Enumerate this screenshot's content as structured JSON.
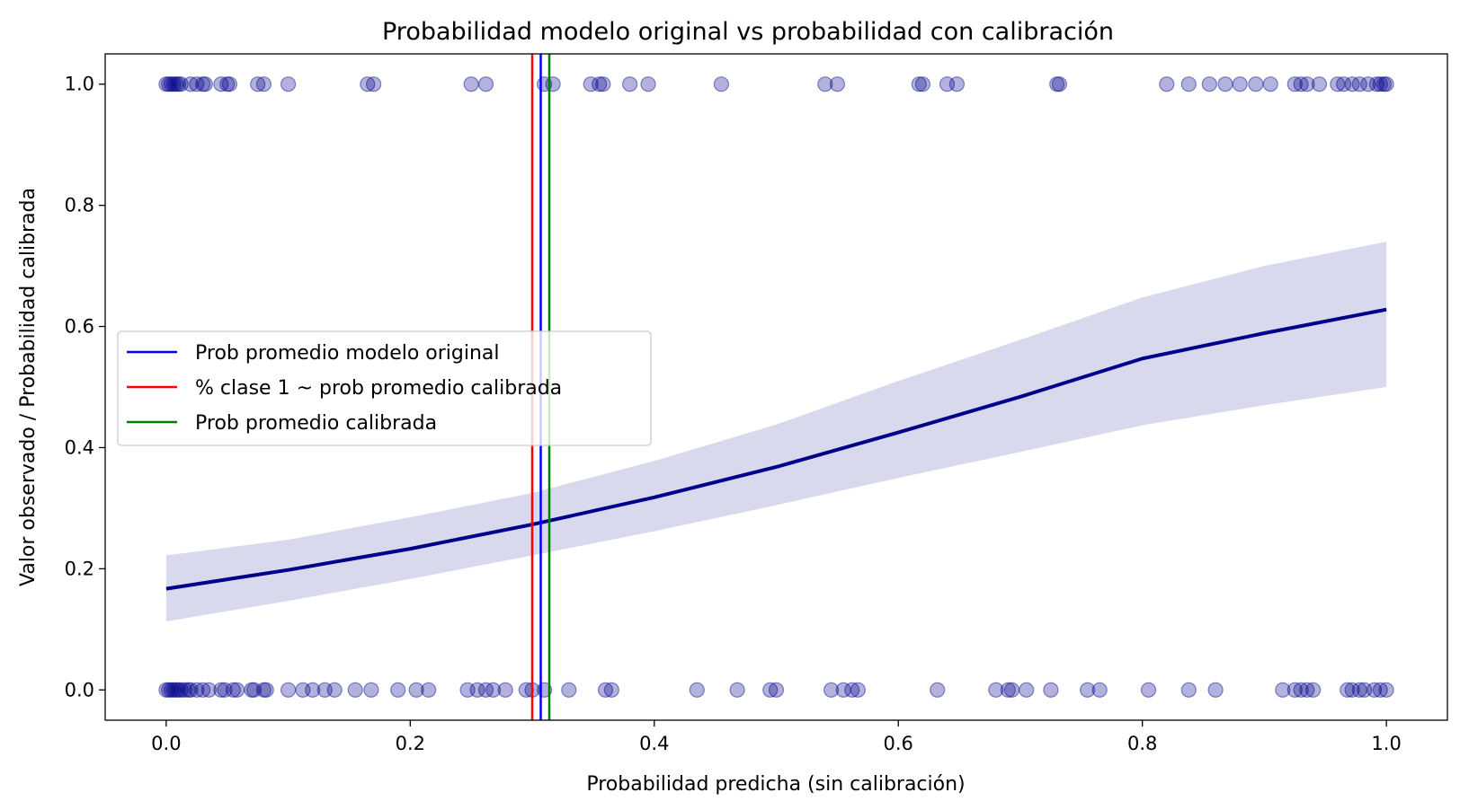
{
  "chart_data": {
    "type": "scatter",
    "title": "Probabilidad modelo original vs probabilidad con calibración",
    "xlabel": "Probabilidad predicha (sin calibración)",
    "ylabel": "Valor observado / Probabilidad calibrada",
    "xlim": [
      -0.05,
      1.05
    ],
    "ylim": [
      -0.05,
      1.05
    ],
    "xticks": [
      0.0,
      0.2,
      0.4,
      0.6,
      0.8,
      1.0
    ],
    "xtick_labels": [
      "0.0",
      "0.2",
      "0.4",
      "0.6",
      "0.8",
      "1.0"
    ],
    "yticks": [
      0.0,
      0.2,
      0.4,
      0.6,
      0.8,
      1.0
    ],
    "ytick_labels": [
      "0.0",
      "0.2",
      "0.4",
      "0.6",
      "0.8",
      "1.0"
    ],
    "grid": false,
    "legend_position": "center-left",
    "colors": {
      "points": "#00008b",
      "curve": "#00008b",
      "band": "#d8d9ec",
      "mean_original": "#0000ff",
      "class1": "#ff0000",
      "mean_calibrated": "#008000"
    },
    "points_y1": [
      0.0,
      0.002,
      0.004,
      0.006,
      0.008,
      0.01,
      0.012,
      0.02,
      0.025,
      0.03,
      0.032,
      0.045,
      0.05,
      0.052,
      0.075,
      0.08,
      0.1,
      0.165,
      0.17,
      0.25,
      0.262,
      0.31,
      0.317,
      0.348,
      0.355,
      0.358,
      0.38,
      0.395,
      0.455,
      0.54,
      0.55,
      0.617,
      0.62,
      0.64,
      0.648,
      0.73,
      0.732,
      0.82,
      0.838,
      0.855,
      0.868,
      0.88,
      0.893,
      0.905,
      0.925,
      0.93,
      0.935,
      0.945,
      0.96,
      0.965,
      0.972,
      0.978,
      0.985,
      0.992,
      0.995,
      0.998,
      1.0
    ],
    "points_y0": [
      0.0,
      0.002,
      0.004,
      0.006,
      0.008,
      0.01,
      0.012,
      0.015,
      0.018,
      0.02,
      0.025,
      0.03,
      0.035,
      0.045,
      0.048,
      0.055,
      0.058,
      0.07,
      0.072,
      0.08,
      0.082,
      0.1,
      0.112,
      0.12,
      0.13,
      0.138,
      0.155,
      0.168,
      0.19,
      0.205,
      0.215,
      0.247,
      0.255,
      0.262,
      0.268,
      0.278,
      0.295,
      0.3,
      0.31,
      0.33,
      0.36,
      0.365,
      0.435,
      0.468,
      0.495,
      0.5,
      0.545,
      0.555,
      0.562,
      0.567,
      0.632,
      0.68,
      0.69,
      0.693,
      0.705,
      0.725,
      0.755,
      0.765,
      0.805,
      0.838,
      0.86,
      0.915,
      0.925,
      0.93,
      0.935,
      0.94,
      0.968,
      0.972,
      0.978,
      0.982,
      0.99,
      0.995,
      1.0
    ],
    "curve": {
      "x": [
        0.0,
        0.1,
        0.2,
        0.3,
        0.4,
        0.5,
        0.6,
        0.7,
        0.8,
        0.9,
        1.0
      ],
      "y": [
        0.167,
        0.198,
        0.233,
        0.273,
        0.318,
        0.368,
        0.425,
        0.484,
        0.547,
        0.589,
        0.628
      ],
      "lower": [
        0.113,
        0.147,
        0.183,
        0.222,
        0.262,
        0.305,
        0.35,
        0.393,
        0.437,
        0.47,
        0.5
      ],
      "upper": [
        0.222,
        0.248,
        0.285,
        0.325,
        0.378,
        0.438,
        0.51,
        0.578,
        0.648,
        0.7,
        0.74
      ]
    },
    "vlines": [
      {
        "name": "Prob promedio modelo original",
        "x": 0.307,
        "color": "#0000ff"
      },
      {
        "name": "% clase 1 ~ prob promedio calibrada",
        "x": 0.3,
        "color": "#ff0000"
      },
      {
        "name": "Prob promedio calibrada",
        "x": 0.314,
        "color": "#008000"
      }
    ],
    "legend": [
      "Prob promedio modelo original",
      "% clase 1 ~ prob promedio calibrada",
      "Prob promedio calibrada"
    ]
  }
}
